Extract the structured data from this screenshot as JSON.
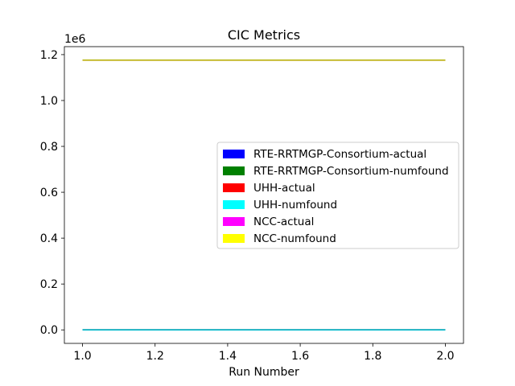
{
  "chart_data": {
    "type": "line",
    "title": "CIC Metrics",
    "xlabel": "Run Number",
    "ylabel": "",
    "y_offset_label": "1e6",
    "xlim": [
      0.95,
      2.05
    ],
    "ylim": [
      -58800,
      1234800
    ],
    "x_ticks": [
      1.0,
      1.2,
      1.4,
      1.6,
      1.8,
      2.0
    ],
    "x_tick_labels": [
      "1.0",
      "1.2",
      "1.4",
      "1.6",
      "1.8",
      "2.0"
    ],
    "y_ticks": [
      0,
      200000,
      400000,
      600000,
      800000,
      1000000,
      1200000
    ],
    "y_tick_labels": [
      "0.0",
      "0.2",
      "0.4",
      "0.6",
      "0.8",
      "1.0",
      "1.2"
    ],
    "legend_position": "center-right",
    "series": [
      {
        "name": "RTE-RRTMGP-Consortium-actual",
        "color": "#0000ff",
        "x": [
          1,
          2
        ],
        "y": [
          0,
          0
        ]
      },
      {
        "name": "RTE-RRTMGP-Consortium-numfound",
        "color": "#008000",
        "x": [
          1,
          2
        ],
        "y": [
          0,
          0
        ]
      },
      {
        "name": "UHH-actual",
        "color": "#ff0000",
        "x": [
          1,
          2
        ],
        "y": [
          0,
          0
        ]
      },
      {
        "name": "UHH-numfound",
        "color": "#00ffff",
        "x": [
          1,
          2
        ],
        "y": [
          0,
          0
        ]
      },
      {
        "name": "NCC-actual",
        "color": "#ff00ff",
        "x": [
          1,
          2
        ],
        "y": [
          1176000,
          1176000
        ]
      },
      {
        "name": "NCC-numfound",
        "color": "#ffff00",
        "x": [
          1,
          2
        ],
        "y": [
          1176000,
          1176000
        ]
      }
    ],
    "visible_line_colors": {
      "near_zero": "#17becf",
      "top": "#bcbd22"
    }
  }
}
